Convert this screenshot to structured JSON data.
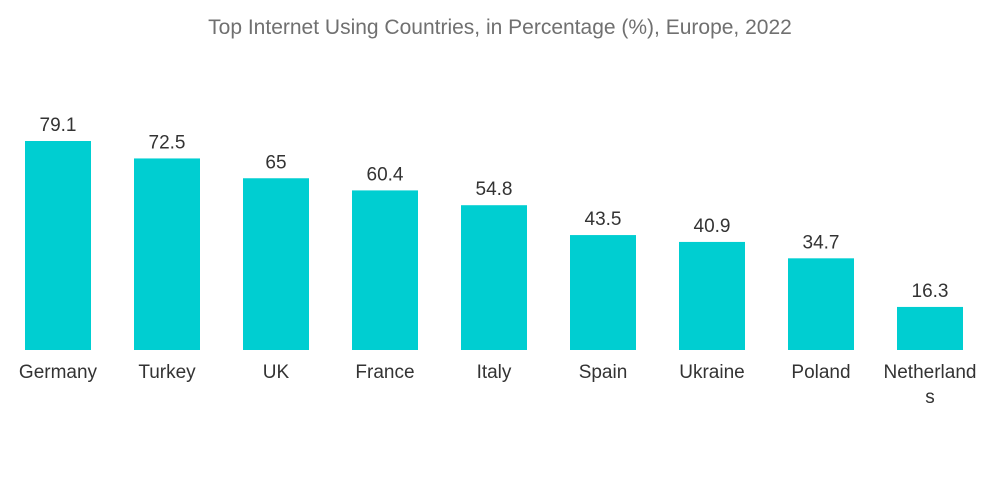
{
  "chart_data": {
    "type": "bar",
    "title": "Top Internet Using Countries, in Percentage (%), Europe, 2022",
    "categories": [
      "Germany",
      "Turkey",
      "UK",
      "France",
      "Italy",
      "Spain",
      "Ukraine",
      "Poland",
      "Netherlands"
    ],
    "category_display_lines": [
      [
        "Germany"
      ],
      [
        "Turkey"
      ],
      [
        "UK"
      ],
      [
        "France"
      ],
      [
        "Italy"
      ],
      [
        "Spain"
      ],
      [
        "Ukraine"
      ],
      [
        "Poland"
      ],
      [
        "Netherland",
        "s"
      ]
    ],
    "values": [
      79.1,
      72.5,
      65,
      60.4,
      54.8,
      43.5,
      40.9,
      34.7,
      16.3
    ],
    "value_labels": [
      "79.1",
      "72.5",
      "65",
      "60.4",
      "54.8",
      "43.5",
      "40.9",
      "34.7",
      "16.3"
    ],
    "xlabel": "",
    "ylabel": "",
    "ylim": [
      0,
      79.1
    ],
    "grid": false,
    "legend": "none",
    "bar_color": "#00CED1"
  }
}
